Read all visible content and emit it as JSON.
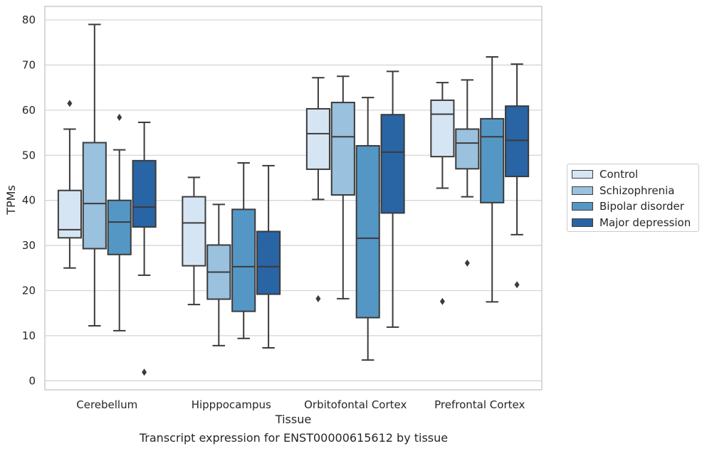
{
  "chart_data": {
    "type": "box",
    "title": "",
    "caption": "Transcript expression for ENST00000615612 by tissue",
    "xlabel": "Tissue",
    "ylabel": "TPMs",
    "ylim": [
      -2,
      83
    ],
    "yticks": [
      0,
      10,
      20,
      30,
      40,
      50,
      60,
      70,
      80
    ],
    "grid": "horizontal",
    "legend_position": "right",
    "categories": [
      "Cerebellum",
      "Hipppocampus",
      "Orbitofontal Cortex",
      "Prefrontal Cortex"
    ],
    "series": [
      {
        "name": "Control",
        "color": "#d6e5f4",
        "boxes": [
          {
            "whislo": 25.0,
            "q1": 31.7,
            "med": 33.5,
            "q3": 42.2,
            "whishi": 55.8,
            "fliers": [
              61.5
            ]
          },
          {
            "whislo": 16.9,
            "q1": 25.5,
            "med": 35.0,
            "q3": 40.8,
            "whishi": 45.1,
            "fliers": []
          },
          {
            "whislo": 40.2,
            "q1": 46.9,
            "med": 54.8,
            "q3": 60.3,
            "whishi": 67.2,
            "fliers": [
              18.2
            ]
          },
          {
            "whislo": 42.7,
            "q1": 49.7,
            "med": 59.1,
            "q3": 62.2,
            "whishi": 66.1,
            "fliers": [
              17.6
            ]
          }
        ]
      },
      {
        "name": "Schizophrenia",
        "color": "#9ac1de",
        "boxes": [
          {
            "whislo": 12.2,
            "q1": 29.3,
            "med": 39.3,
            "q3": 52.8,
            "whishi": 79.0,
            "fliers": []
          },
          {
            "whislo": 7.8,
            "q1": 18.1,
            "med": 24.1,
            "q3": 30.1,
            "whishi": 39.1,
            "fliers": []
          },
          {
            "whislo": 18.2,
            "q1": 41.2,
            "med": 54.1,
            "q3": 61.7,
            "whishi": 67.5,
            "fliers": []
          },
          {
            "whislo": 40.8,
            "q1": 47.0,
            "med": 52.7,
            "q3": 55.8,
            "whishi": 66.7,
            "fliers": [
              26.1
            ]
          }
        ]
      },
      {
        "name": "Bipolar disorder",
        "color": "#5497c5",
        "boxes": [
          {
            "whislo": 11.1,
            "q1": 28.0,
            "med": 35.2,
            "q3": 40.0,
            "whishi": 51.2,
            "fliers": [
              58.4
            ]
          },
          {
            "whislo": 9.4,
            "q1": 15.4,
            "med": 25.3,
            "q3": 38.0,
            "whishi": 48.3,
            "fliers": []
          },
          {
            "whislo": 4.6,
            "q1": 14.0,
            "med": 31.6,
            "q3": 52.1,
            "whishi": 62.8,
            "fliers": []
          },
          {
            "whislo": 17.5,
            "q1": 39.5,
            "med": 54.1,
            "q3": 58.1,
            "whishi": 71.8,
            "fliers": []
          }
        ]
      },
      {
        "name": "Major depression",
        "color": "#2964a4",
        "boxes": [
          {
            "whislo": 23.4,
            "q1": 34.1,
            "med": 38.5,
            "q3": 48.8,
            "whishi": 57.3,
            "fliers": [
              1.9
            ]
          },
          {
            "whislo": 7.3,
            "q1": 19.2,
            "med": 25.3,
            "q3": 33.1,
            "whishi": 47.7,
            "fliers": []
          },
          {
            "whislo": 11.9,
            "q1": 37.2,
            "med": 50.7,
            "q3": 59.0,
            "whishi": 68.6,
            "fliers": []
          },
          {
            "whislo": 32.4,
            "q1": 45.3,
            "med": 53.3,
            "q3": 60.9,
            "whishi": 70.2,
            "fliers": [
              21.3
            ]
          }
        ]
      }
    ]
  }
}
